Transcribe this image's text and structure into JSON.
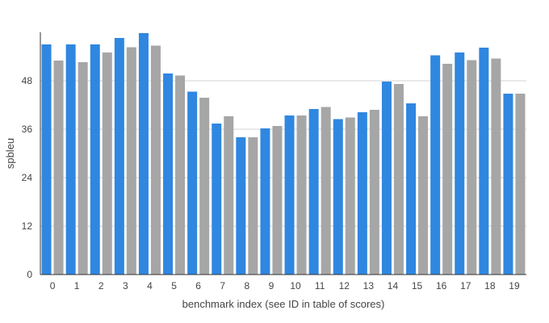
{
  "chart_data": {
    "type": "bar",
    "title": "",
    "xlabel": "benchmark index (see ID in table of scores)",
    "ylabel": "spbleu",
    "ylim": [
      0,
      60
    ],
    "yticks": [
      0,
      12,
      24,
      36,
      48
    ],
    "grid": "horizontal",
    "legend": "none",
    "categories": [
      "0",
      "1",
      "2",
      "3",
      "4",
      "5",
      "6",
      "7",
      "8",
      "9",
      "10",
      "11",
      "12",
      "13",
      "14",
      "15",
      "16",
      "17",
      "18",
      "19"
    ],
    "series": [
      {
        "color": "#2f87e0",
        "values": [
          57.0,
          57.0,
          57.0,
          58.6,
          59.8,
          49.8,
          45.3,
          37.4,
          34.0,
          36.2,
          39.4,
          41.0,
          38.5,
          40.2,
          47.8,
          42.4,
          54.3,
          55.0,
          56.2,
          44.8
        ]
      },
      {
        "color": "#a6a6a6",
        "values": [
          53.0,
          52.6,
          55.0,
          56.3,
          56.7,
          49.3,
          43.8,
          39.2,
          34.0,
          36.8,
          39.4,
          41.5,
          38.9,
          40.8,
          47.2,
          39.2,
          52.2,
          53.1,
          53.5,
          44.8
        ]
      }
    ]
  }
}
